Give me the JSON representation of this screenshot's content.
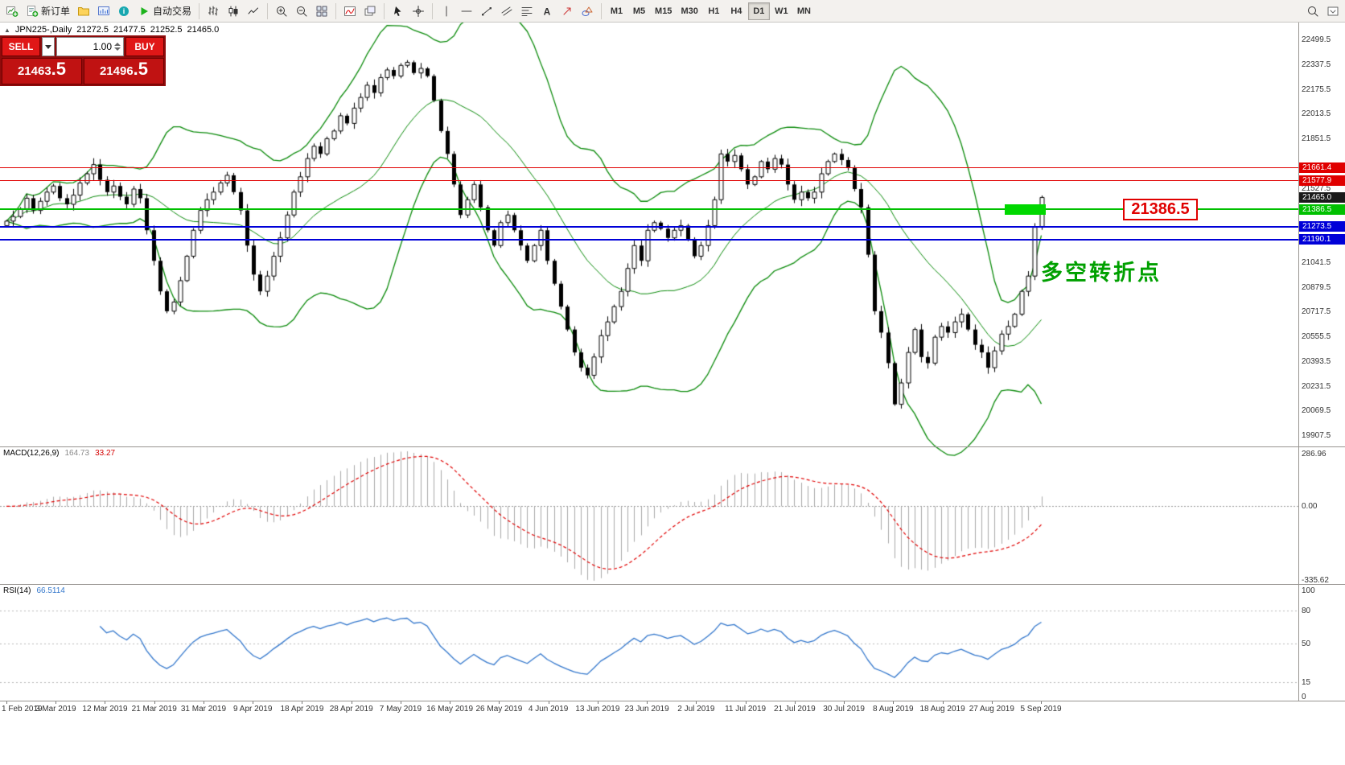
{
  "toolbar": {
    "buttons": {
      "new_order": "新订单",
      "auto_trading": "自动交易"
    },
    "icon_buttons": [
      "new-chart",
      "new-order",
      "profiles",
      "charts-list",
      "info",
      "auto-trading",
      "bar-chart",
      "candlestick-chart",
      "line-chart",
      "zoom-in",
      "zoom-out",
      "tile-windows",
      "indicators",
      "cascade-windows",
      "cursor",
      "crosshair",
      "vertical-line",
      "horizontal-line",
      "trendline",
      "channel",
      "fibonacci",
      "text",
      "arrows",
      "shapes",
      "search",
      "panel-toggle"
    ],
    "timeframes": [
      {
        "label": "M1",
        "active": false
      },
      {
        "label": "M5",
        "active": false
      },
      {
        "label": "M15",
        "active": false
      },
      {
        "label": "M30",
        "active": false
      },
      {
        "label": "H1",
        "active": false
      },
      {
        "label": "H4",
        "active": false
      },
      {
        "label": "D1",
        "active": true
      },
      {
        "label": "W1",
        "active": false
      },
      {
        "label": "MN",
        "active": false
      }
    ]
  },
  "symbol_bar": {
    "symbol": "JPN225-,Daily",
    "open": "21272.5",
    "high": "21477.5",
    "low": "21252.5",
    "close": "21465.0"
  },
  "trade_panel": {
    "sell_label": "SELL",
    "buy_label": "BUY",
    "volume": "1.00",
    "sell_price_int": "21463",
    "sell_price_frac": ".5",
    "buy_price_int": "21496",
    "buy_price_frac": ".5"
  },
  "annotations": {
    "turning_point": "多空转折点",
    "price_callout": "21386.5"
  },
  "colors": {
    "bull": "#ffffff",
    "bear": "#000000",
    "bollinger": "#0a8a0a",
    "macd_hist": "#a8a8a8",
    "macd_signal": "#e00000",
    "rsi": "#3377cc",
    "level_red": "#e00000",
    "level_green": "#00c000",
    "level_blue": "#0000d8",
    "highlight_green": "#00d800",
    "annotation_green": "#00a000",
    "callout_red": "#e00000",
    "panel_red": "#8f0b0b",
    "button_red": "#e01717",
    "price_box_red": "#c01212"
  },
  "levels": [
    {
      "name": "resistance-upper",
      "price": 21661.4,
      "color": "#e00000",
      "width": 1
    },
    {
      "name": "resistance-lower",
      "price": 21577.9,
      "color": "#e00000",
      "width": 1
    },
    {
      "name": "pivot-green",
      "price": 21386.5,
      "color": "#00c000",
      "width": 2
    },
    {
      "name": "support-upper",
      "price": 21273.5,
      "color": "#0000d8",
      "width": 2
    },
    {
      "name": "support-lower",
      "price": 21190.1,
      "color": "#0000d8",
      "width": 2
    }
  ],
  "green_box": {
    "price_top": 21420,
    "price_bottom": 21352,
    "bar_start": 150,
    "bar_end": 156
  },
  "price_axis": {
    "min": 19850,
    "max": 22600,
    "labels": [
      {
        "text": "22499.5",
        "price": 22499.5
      },
      {
        "text": "22337.5",
        "price": 22337.5
      },
      {
        "text": "22175.5",
        "price": 22175.5
      },
      {
        "text": "22013.5",
        "price": 22013.5
      },
      {
        "text": "21851.5",
        "price": 21851.5
      },
      {
        "text": "21527.5",
        "price": 21527.5
      },
      {
        "text": "21041.5",
        "price": 21041.5
      },
      {
        "text": "20879.5",
        "price": 20879.5
      },
      {
        "text": "20717.5",
        "price": 20717.5
      },
      {
        "text": "20555.5",
        "price": 20555.5
      },
      {
        "text": "20393.5",
        "price": 20393.5
      },
      {
        "text": "20231.5",
        "price": 20231.5
      },
      {
        "text": "20069.5",
        "price": 20069.5
      },
      {
        "text": "19907.5",
        "price": 19907.5
      }
    ],
    "tags": [
      {
        "text": "21661.4",
        "price": 21661.4,
        "color": "#e00000"
      },
      {
        "text": "21577.9",
        "price": 21577.9,
        "color": "#e00000"
      },
      {
        "text": "21465.0",
        "price": 21465.0,
        "color": "#1a1a1a"
      },
      {
        "text": "21386.5",
        "price": 21386.5,
        "color": "#00c000"
      },
      {
        "text": "21273.5",
        "price": 21273.5,
        "color": "#0000d8"
      },
      {
        "text": "21190.1",
        "price": 21190.1,
        "color": "#0000d8"
      }
    ]
  },
  "macd_panel": {
    "label": "MACD(12,26,9)",
    "value_main": "164.73",
    "value_signal": "33.27",
    "axis": [
      "286.96",
      "0.00",
      "-335.62"
    ]
  },
  "rsi_panel": {
    "label": "RSI(14)",
    "value": "66.5114",
    "axis": [
      "100",
      "80",
      "50",
      "15",
      "0"
    ],
    "levels": [
      80,
      50,
      15
    ]
  },
  "x_axis": {
    "labels": [
      "1 Feb 2019",
      "3 Mar 2019",
      "12 Mar 2019",
      "21 Mar 2019",
      "31 Mar 2019",
      "9 Apr 2019",
      "18 Apr 2019",
      "28 Apr 2019",
      "7 May 2019",
      "16 May 2019",
      "26 May 2019",
      "4 Jun 2019",
      "13 Jun 2019",
      "23 Jun 2019",
      "2 Jul 2019",
      "11 Jul 2019",
      "21 Jul 2019",
      "30 Jul 2019",
      "8 Aug 2019",
      "18 Aug 2019",
      "27 Aug 2019",
      "5 Sep 2019"
    ]
  },
  "chart_data": {
    "type": "candlestick",
    "symbol": "JPN225",
    "timeframe": "Daily",
    "title": "JPN225-,Daily 21272.5 21477.5 21252.5 21465.0",
    "y_axis": {
      "first_label": 19907.5,
      "step": 162,
      "count": 17
    },
    "x_tick_labels": [
      "1 Feb 2019",
      "3 Mar 2019",
      "12 Mar 2019",
      "21 Mar 2019",
      "31 Mar 2019",
      "9 Apr 2019",
      "18 Apr 2019",
      "28 Apr 2019",
      "7 May 2019",
      "16 May 2019",
      "26 May 2019",
      "4 Jun 2019",
      "13 Jun 2019",
      "23 Jun 2019",
      "2 Jul 2019",
      "11 Jul 2019",
      "21 Jul 2019",
      "30 Jul 2019",
      "8 Aug 2019",
      "18 Aug 2019",
      "27 Aug 2019",
      "5 Sep 2019"
    ],
    "closes": [
      21310,
      21340,
      21390,
      21460,
      21380,
      21440,
      21500,
      21540,
      21460,
      21420,
      21480,
      21560,
      21620,
      21680,
      21580,
      21500,
      21540,
      21470,
      21420,
      21520,
      21460,
      21250,
      21050,
      20850,
      20720,
      20780,
      20920,
      21080,
      21250,
      21380,
      21450,
      21500,
      21560,
      21610,
      21500,
      21380,
      21150,
      20960,
      20850,
      20950,
      21080,
      21200,
      21350,
      21500,
      21600,
      21720,
      21800,
      21750,
      21850,
      21900,
      22000,
      21950,
      22050,
      22120,
      22200,
      22150,
      22250,
      22300,
      22260,
      22330,
      22350,
      22280,
      22310,
      22260,
      22100,
      21900,
      21750,
      21550,
      21350,
      21450,
      21550,
      21400,
      21250,
      21150,
      21300,
      21350,
      21250,
      21150,
      21050,
      21150,
      21250,
      21050,
      20900,
      20750,
      20600,
      20450,
      20350,
      20300,
      20420,
      20560,
      20650,
      20750,
      20850,
      21000,
      21150,
      21050,
      21250,
      21300,
      21260,
      21200,
      21250,
      21280,
      21190,
      21080,
      21150,
      21280,
      21450,
      21750,
      21700,
      21740,
      21650,
      21550,
      21600,
      21700,
      21650,
      21720,
      21680,
      21550,
      21450,
      21500,
      21460,
      21500,
      21620,
      21700,
      21750,
      21710,
      21660,
      21520,
      21400,
      21090,
      20720,
      20580,
      20380,
      20110,
      20250,
      20450,
      20600,
      20420,
      20380,
      20550,
      20620,
      20580,
      20650,
      20700,
      20600,
      20500,
      20450,
      20350,
      20460,
      20570,
      20620,
      20700,
      20850,
      20950,
      21270,
      21465
    ],
    "last_bar_ohlc": [
      21272.5,
      21477.5,
      21252.5,
      21465.0
    ],
    "overlays": {
      "bollinger": {
        "period": 20,
        "deviation": 2
      },
      "horizontal_lines": [
        {
          "price": 21661.4,
          "color": "red"
        },
        {
          "price": 21577.9,
          "color": "red"
        },
        {
          "price": 21386.5,
          "color": "green"
        },
        {
          "price": 21273.5,
          "color": "blue"
        },
        {
          "price": 21190.1,
          "color": "blue"
        }
      ]
    },
    "indicators": [
      {
        "type": "MACD",
        "params": [
          12,
          26,
          9
        ],
        "displayed_values": [
          164.73,
          33.27
        ],
        "axis_range": [
          -335.62,
          286.96
        ]
      },
      {
        "type": "RSI",
        "params": [
          14
        ],
        "displayed_value": 66.5114,
        "axis_range": [
          0,
          100
        ]
      }
    ]
  }
}
